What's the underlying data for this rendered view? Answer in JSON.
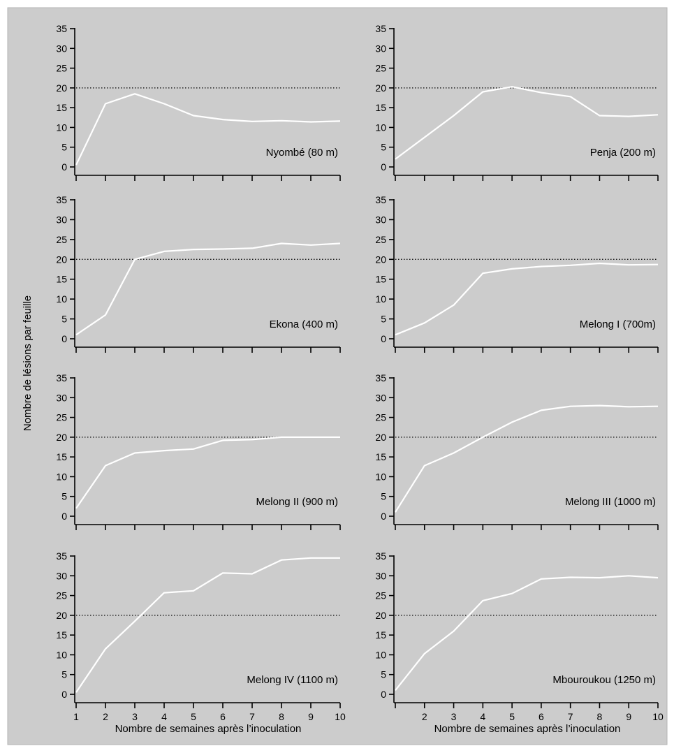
{
  "colors": {
    "background": "#cccccc",
    "border": "#b3b3b3",
    "series_line": "#ffffff",
    "reference_line": "#000000",
    "axis": "#000000"
  },
  "ylabel": "Nombre de lésions par feuille",
  "xlabel_left": "Nombre de semaines après l’inoculation",
  "xlabel_right": "Nombre de semaines après l’inoculation",
  "chart_data": [
    {
      "type": "line",
      "label": "Nyombé (80 m)",
      "x": [
        1,
        2,
        3,
        4,
        5,
        6,
        7,
        8,
        9,
        10
      ],
      "values": [
        0.5,
        16,
        18.5,
        16,
        13,
        12,
        11.5,
        11.7,
        11.4,
        11.6
      ],
      "reference_y": 20,
      "ylim": [
        0,
        35
      ],
      "yticks": [
        0,
        5,
        10,
        15,
        20,
        25,
        30,
        35
      ],
      "grid": false
    },
    {
      "type": "line",
      "label": "Penja (200 m)",
      "x": [
        1,
        2,
        3,
        4,
        5,
        6,
        7,
        8,
        9,
        10
      ],
      "values": [
        2,
        7.5,
        13,
        19,
        20.3,
        18.8,
        17.8,
        13,
        12.8,
        13.2
      ],
      "reference_y": 20,
      "ylim": [
        0,
        35
      ],
      "yticks": [
        0,
        5,
        10,
        15,
        20,
        25,
        30,
        35
      ],
      "grid": false
    },
    {
      "type": "line",
      "label": "Ekona (400 m)",
      "x": [
        1,
        2,
        3,
        4,
        5,
        6,
        7,
        8,
        9,
        10
      ],
      "values": [
        1,
        6,
        20,
        22,
        22.5,
        22.6,
        22.8,
        24,
        23.6,
        24
      ],
      "reference_y": 20,
      "ylim": [
        0,
        35
      ],
      "yticks": [
        0,
        5,
        10,
        15,
        20,
        25,
        30,
        35
      ],
      "grid": false
    },
    {
      "type": "line",
      "label": "Melong I (700m)",
      "x": [
        1,
        2,
        3,
        4,
        5,
        6,
        7,
        8,
        9,
        10
      ],
      "values": [
        1,
        4,
        8.5,
        16.5,
        17.6,
        18.2,
        18.5,
        19,
        18.6,
        18.7
      ],
      "reference_y": 20,
      "ylim": [
        0,
        35
      ],
      "yticks": [
        0,
        5,
        10,
        15,
        20,
        25,
        30,
        35
      ],
      "grid": false
    },
    {
      "type": "line",
      "label": "Melong II (900 m)",
      "x": [
        1,
        2,
        3,
        4,
        5,
        6,
        7,
        8,
        9,
        10
      ],
      "values": [
        2,
        12.8,
        16,
        16.6,
        17,
        19.2,
        19.4,
        20,
        20,
        20
      ],
      "reference_y": 20,
      "ylim": [
        0,
        35
      ],
      "yticks": [
        0,
        5,
        10,
        15,
        20,
        25,
        30,
        35
      ],
      "grid": false
    },
    {
      "type": "line",
      "label": "Melong III (1000 m)",
      "x": [
        1,
        2,
        3,
        4,
        5,
        6,
        7,
        8,
        9,
        10
      ],
      "values": [
        1,
        12.8,
        16,
        20,
        23.8,
        26.8,
        27.8,
        28,
        27.7,
        27.8
      ],
      "reference_y": 20,
      "ylim": [
        0,
        35
      ],
      "yticks": [
        0,
        5,
        10,
        15,
        20,
        25,
        30,
        35
      ],
      "grid": false
    },
    {
      "type": "line",
      "label": "Melong IV (1100 m)",
      "x": [
        1,
        2,
        3,
        4,
        5,
        6,
        7,
        8,
        9,
        10
      ],
      "values": [
        0.5,
        11.5,
        18.5,
        25.7,
        26.2,
        30.7,
        30.5,
        34,
        34.5,
        34.5
      ],
      "reference_y": 20,
      "ylim": [
        0,
        35
      ],
      "yticks": [
        0,
        5,
        10,
        15,
        20,
        25,
        30,
        35
      ],
      "grid": false
    },
    {
      "type": "line",
      "label": "Mbouroukou (1250 m)",
      "x": [
        1,
        2,
        3,
        4,
        5,
        6,
        7,
        8,
        9,
        10
      ],
      "values": [
        1,
        10.3,
        16,
        23.7,
        25.5,
        29.2,
        29.6,
        29.5,
        30,
        29.5
      ],
      "reference_y": 20,
      "ylim": [
        0,
        35
      ],
      "yticks": [
        0,
        5,
        10,
        15,
        20,
        25,
        30,
        35
      ],
      "grid": false
    }
  ],
  "xticks_left": [
    "1",
    "2",
    "3",
    "4",
    "5",
    "6",
    "7",
    "8",
    "9",
    "10"
  ],
  "xticks_right": [
    "",
    "2",
    "3",
    "4",
    "5",
    "6",
    "7",
    "8",
    "9",
    "10"
  ]
}
